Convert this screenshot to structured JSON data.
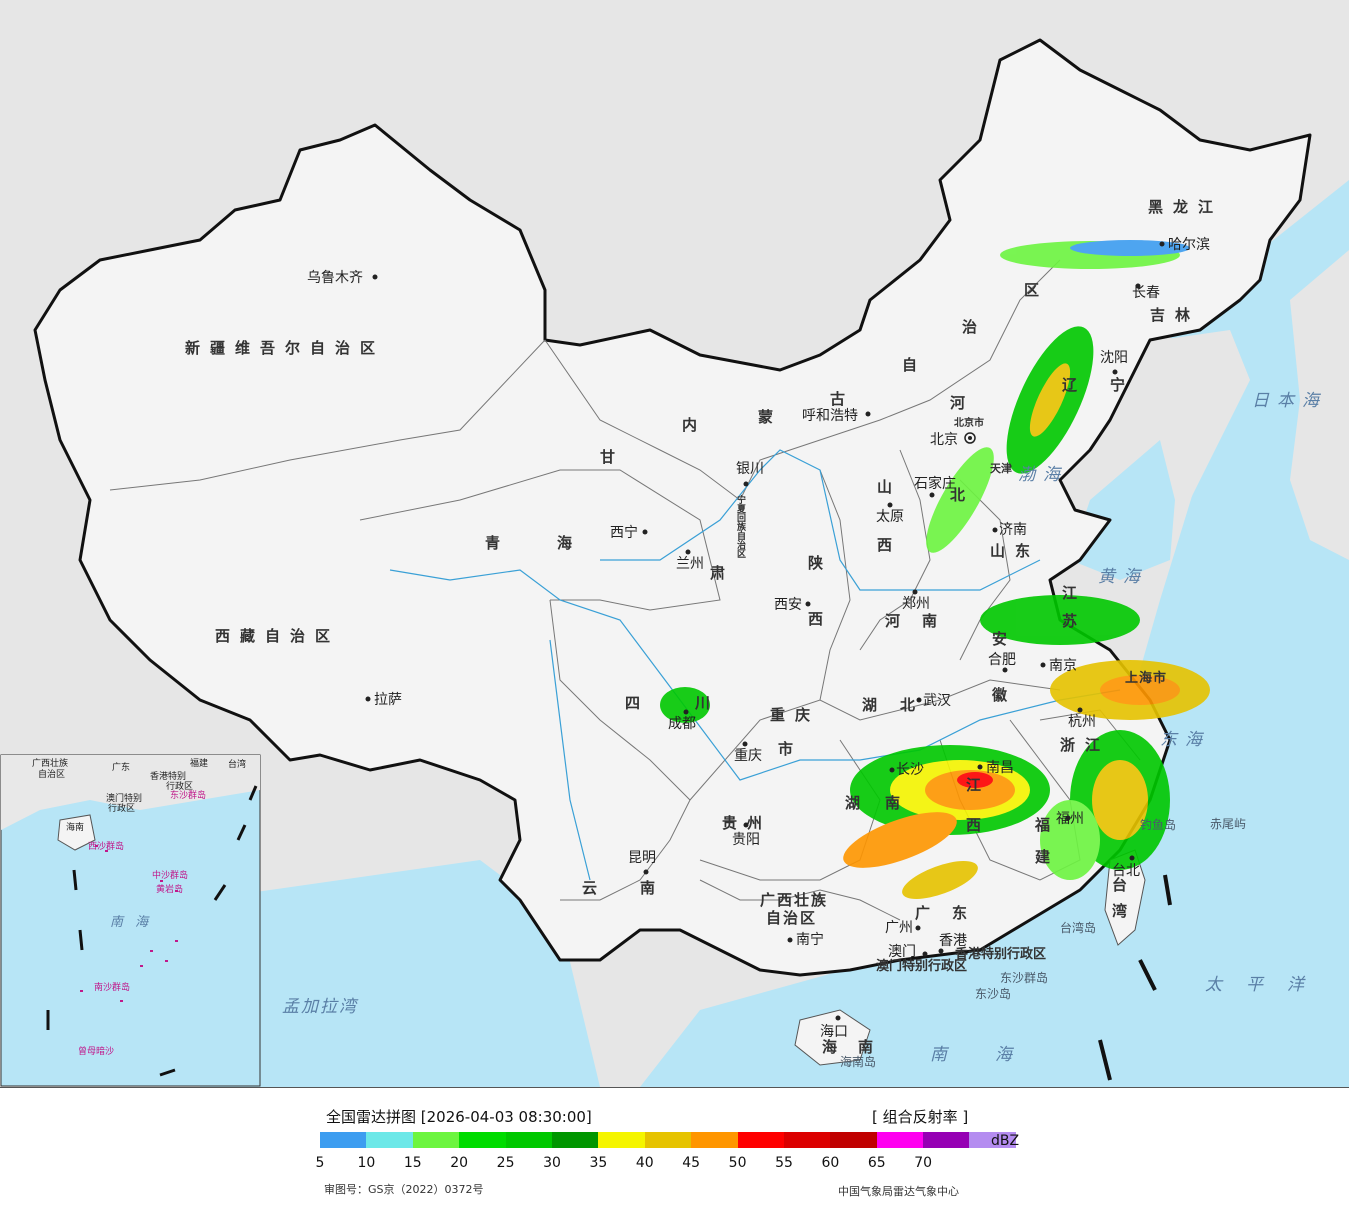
{
  "colors": {
    "sea": "#b7e5f6",
    "land_out": "#e8e8e8",
    "china": "#f3f3f3",
    "border": "#222222"
  },
  "provinces": [
    {
      "id": "xinjiang",
      "text": "新疆维吾尔自治区"
    },
    {
      "id": "xizang",
      "text": "西藏自治区"
    },
    {
      "id": "qinghai1",
      "text": "青"
    },
    {
      "id": "qinghai2",
      "text": "海"
    },
    {
      "id": "gansu1",
      "text": "甘"
    },
    {
      "id": "gansu2",
      "text": "肃"
    },
    {
      "id": "sichuan1",
      "text": "四"
    },
    {
      "id": "sichuan2",
      "text": "川"
    },
    {
      "id": "yunnan1",
      "text": "云"
    },
    {
      "id": "yunnan2",
      "text": "南"
    },
    {
      "id": "nmg1",
      "text": "内"
    },
    {
      "id": "nmg2",
      "text": "蒙"
    },
    {
      "id": "nmg3",
      "text": "古"
    },
    {
      "id": "nmg4",
      "text": "自"
    },
    {
      "id": "nmg5",
      "text": "治"
    },
    {
      "id": "nmg6",
      "text": "区"
    },
    {
      "id": "hlj",
      "text": "黑龙江"
    },
    {
      "id": "jilin",
      "text": "吉林"
    },
    {
      "id": "liaoning1",
      "text": "辽"
    },
    {
      "id": "liaoning2",
      "text": "宁"
    },
    {
      "id": "hebei1",
      "text": "河"
    },
    {
      "id": "hebei2",
      "text": "北"
    },
    {
      "id": "shanxi1",
      "text": "山"
    },
    {
      "id": "shanxi2",
      "text": "西"
    },
    {
      "id": "shaanxi1",
      "text": "陕"
    },
    {
      "id": "shaanxi2",
      "text": "西"
    },
    {
      "id": "henan1",
      "text": "河"
    },
    {
      "id": "henan2",
      "text": "南"
    },
    {
      "id": "shandong",
      "text": "山东"
    },
    {
      "id": "jiangsu1",
      "text": "江"
    },
    {
      "id": "jiangsu2",
      "text": "苏"
    },
    {
      "id": "anhui1",
      "text": "安"
    },
    {
      "id": "anhui2",
      "text": "徽"
    },
    {
      "id": "hubei1",
      "text": "湖"
    },
    {
      "id": "hubei2",
      "text": "北"
    },
    {
      "id": "hunan1",
      "text": "湖"
    },
    {
      "id": "hunan2",
      "text": "南"
    },
    {
      "id": "jiangxi1",
      "text": "江"
    },
    {
      "id": "jiangxi2",
      "text": "西"
    },
    {
      "id": "zhejiang",
      "text": "浙江"
    },
    {
      "id": "fujian1",
      "text": "福"
    },
    {
      "id": "fujian2",
      "text": "建"
    },
    {
      "id": "guizhou",
      "text": "贵州"
    },
    {
      "id": "chongqing1",
      "text": "重庆"
    },
    {
      "id": "chongqing2",
      "text": "市"
    },
    {
      "id": "guangxi1",
      "text": "广西壮族"
    },
    {
      "id": "guangxi2",
      "text": "自治区"
    },
    {
      "id": "guangdong1",
      "text": "广"
    },
    {
      "id": "guangdong2",
      "text": "东"
    },
    {
      "id": "hainan1",
      "text": "海"
    },
    {
      "id": "hainan2",
      "text": "南"
    },
    {
      "id": "taiwan1",
      "text": "台"
    },
    {
      "id": "taiwan2",
      "text": "湾"
    },
    {
      "id": "shanghai",
      "text": "上海市"
    },
    {
      "id": "tianjin",
      "text": "天津"
    },
    {
      "id": "beijing_city",
      "text": "北京市"
    },
    {
      "id": "ningxia",
      "text": "宁夏回族自治区"
    },
    {
      "id": "hk",
      "text": "香港特别行政区"
    },
    {
      "id": "macau",
      "text": "澳门特别行政区"
    }
  ],
  "cities": [
    {
      "id": "urumqi",
      "text": "乌鲁木齐"
    },
    {
      "id": "lhasa",
      "text": "拉萨"
    },
    {
      "id": "xining",
      "text": "西宁"
    },
    {
      "id": "lanzhou",
      "text": "兰州"
    },
    {
      "id": "yinchuan",
      "text": "银川"
    },
    {
      "id": "hohhot",
      "text": "呼和浩特"
    },
    {
      "id": "harbin",
      "text": "哈尔滨"
    },
    {
      "id": "changchun",
      "text": "长春"
    },
    {
      "id": "shenyang",
      "text": "沈阳"
    },
    {
      "id": "beijing",
      "text": "北京"
    },
    {
      "id": "shijiazhuang",
      "text": "石家庄"
    },
    {
      "id": "taiyuan",
      "text": "太原"
    },
    {
      "id": "jinan",
      "text": "济南"
    },
    {
      "id": "xian",
      "text": "西安"
    },
    {
      "id": "zhengzhou",
      "text": "郑州"
    },
    {
      "id": "hefei",
      "text": "合肥"
    },
    {
      "id": "nanjing",
      "text": "南京"
    },
    {
      "id": "wuhan",
      "text": "武汉"
    },
    {
      "id": "hangzhou",
      "text": "杭州"
    },
    {
      "id": "chengdu",
      "text": "成都"
    },
    {
      "id": "chongqing",
      "text": "重庆"
    },
    {
      "id": "changsha",
      "text": "长沙"
    },
    {
      "id": "nanchang",
      "text": "南昌"
    },
    {
      "id": "fuzhou",
      "text": "福州"
    },
    {
      "id": "guiyang",
      "text": "贵阳"
    },
    {
      "id": "kunming",
      "text": "昆明"
    },
    {
      "id": "nanning",
      "text": "南宁"
    },
    {
      "id": "guangzhou",
      "text": "广州"
    },
    {
      "id": "macau_c",
      "text": "澳门"
    },
    {
      "id": "hongkong",
      "text": "香港"
    },
    {
      "id": "haikou",
      "text": "海口"
    },
    {
      "id": "taibei",
      "text": "台北"
    }
  ],
  "seas": [
    {
      "id": "japan_sea",
      "text": "日本海"
    },
    {
      "id": "bohai",
      "text": "渤海"
    },
    {
      "id": "yellow_sea",
      "text": "黄海"
    },
    {
      "id": "east_sea",
      "text": "东海"
    },
    {
      "id": "south_sea",
      "text": "南海"
    },
    {
      "id": "pacific",
      "text": "太平洋"
    },
    {
      "id": "bengal",
      "text": "孟加拉湾"
    }
  ],
  "islands": [
    {
      "id": "diaoyu",
      "text": "钓鱼岛"
    },
    {
      "id": "chiwei",
      "text": "赤尾屿"
    },
    {
      "id": "taiwan_island",
      "text": "台湾岛"
    },
    {
      "id": "dongsha_qd",
      "text": "东沙群岛"
    },
    {
      "id": "dongsha_d",
      "text": "东沙岛"
    },
    {
      "id": "hainan_island",
      "text": "海南岛"
    }
  ],
  "inset": {
    "labels": [
      {
        "id": "i_gx",
        "text": "广西壮族"
      },
      {
        "id": "i_gx2",
        "text": "自治区"
      },
      {
        "id": "i_gd",
        "text": "广东"
      },
      {
        "id": "i_fj",
        "text": "福建"
      },
      {
        "id": "i_tw",
        "text": "台湾"
      },
      {
        "id": "i_hk",
        "text": "香港特别"
      },
      {
        "id": "i_hk2",
        "text": "行政区"
      },
      {
        "id": "i_mo",
        "text": "澳门特别"
      },
      {
        "id": "i_mo2",
        "text": "行政区"
      },
      {
        "id": "i_hn",
        "text": "海南"
      },
      {
        "id": "i_dsqd",
        "text": "东沙群岛"
      },
      {
        "id": "i_xsqd",
        "text": "西沙群岛"
      },
      {
        "id": "i_zsqd",
        "text": "中沙群岛"
      },
      {
        "id": "i_hy",
        "text": "黄岩岛"
      },
      {
        "id": "i_nsqd",
        "text": "南沙群岛"
      },
      {
        "id": "i_sea",
        "text": "南 海"
      },
      {
        "id": "i_zm",
        "text": "曾母暗沙"
      }
    ]
  },
  "legend": {
    "title": "全国雷达拼图 [2026-04-03 08:30:00]",
    "product": "[ 组合反射率 ]",
    "unit": "dBZ",
    "ticks": [
      "5",
      "10",
      "15",
      "20",
      "25",
      "30",
      "35",
      "40",
      "45",
      "50",
      "55",
      "60",
      "65",
      "70"
    ],
    "colors": [
      "#3d9df0",
      "#6ce8e8",
      "#6cf540",
      "#00dc00",
      "#00c800",
      "#009600",
      "#f5f500",
      "#e6c300",
      "#ff9600",
      "#ff0000",
      "#dc0000",
      "#c00000",
      "#ff00f0",
      "#9600b4",
      "#b48cf0"
    ],
    "map_review": "审图号：GS京（2022）0372号",
    "agency": "中国气象局雷达气象中心"
  }
}
